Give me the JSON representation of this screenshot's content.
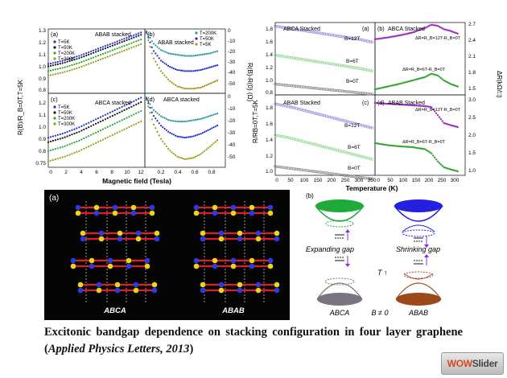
{
  "caption": {
    "text_before": "Excitonic bandgap dependence on stacking configuration in four layer graphene (",
    "journal": "Applied Physics Letters, 2013",
    "text_after": ")"
  },
  "watermark": {
    "part1": "WOW",
    "part2": "Slider"
  },
  "colors": {
    "blue": "#1f27d8",
    "black": "#111111",
    "green": "#2ea52e",
    "olive": "#9a9a12",
    "teal": "#2a9a9a",
    "purple": "#9a2ac4",
    "gray": "#888888",
    "lightblue": "#8f8fe0",
    "lightgreen": "#8fd88f"
  },
  "panel_mr": {
    "ylabel_left": "R(B)/R_B=0T,T=5K",
    "ylabel_right": "R(B)-R(0) (Ω)",
    "xlabel": "Magnetic field (Tesla)",
    "left_yticks": [
      "1.3",
      "1.2",
      "1.1",
      "1.0",
      "0.9",
      "0.8",
      "0.75",
      "0.8",
      "0.9",
      "1.0",
      "1.1",
      "1.2"
    ],
    "right_yticks": [
      "0",
      "-10",
      "-20",
      "-30",
      "-40",
      "-50",
      "0",
      "-10",
      "-20",
      "-30",
      "-40",
      "-50"
    ],
    "xticks_left": [
      "0",
      "2",
      "4",
      "6",
      "8",
      "10",
      "12"
    ],
    "xticks_right": [
      "0.2",
      "0.4",
      "0.6",
      "0.8"
    ],
    "sub": [
      {
        "letter": "(a)",
        "title": "ABAB stacked",
        "legend": [
          "T=5K",
          "T=50K",
          "T=200K",
          "T=300K"
        ]
      },
      {
        "letter": "(b)",
        "title": "ABAB stacked",
        "legend": [
          "T=200K",
          "T=50K",
          "T=5K"
        ]
      },
      {
        "letter": "(c)",
        "title": "",
        "legend": [
          "T=5K",
          "T=50K",
          "T=200K",
          "T=300K"
        ],
        "inline": "ABCA stacked"
      },
      {
        "letter": "(d)",
        "title": "ABCA stacked",
        "legend": []
      }
    ]
  },
  "chart_data": [
    {
      "type": "scatter",
      "title": "ABAB stacked",
      "xlabel": "Magnetic field (Tesla)",
      "ylabel": "R(B)/R_B=0T,T=5K",
      "xlim": [
        0,
        12.5
      ],
      "ylim": [
        0.75,
        1.3
      ],
      "series": [
        {
          "name": "T=5K",
          "x": [
            0,
            2,
            4,
            6,
            8,
            10,
            12
          ],
          "y": [
            1.0,
            1.03,
            1.07,
            1.12,
            1.17,
            1.22,
            1.27
          ]
        },
        {
          "name": "T=50K",
          "x": [
            0,
            2,
            4,
            6,
            8,
            10,
            12
          ],
          "y": [
            0.98,
            1.01,
            1.05,
            1.1,
            1.15,
            1.2,
            1.25
          ]
        },
        {
          "name": "T=200K",
          "x": [
            0,
            2,
            4,
            6,
            8,
            10,
            12
          ],
          "y": [
            0.94,
            0.97,
            1.01,
            1.06,
            1.11,
            1.16,
            1.21
          ]
        },
        {
          "name": "T=300K",
          "x": [
            0,
            2,
            4,
            6,
            8,
            10,
            12
          ],
          "y": [
            0.9,
            0.93,
            0.97,
            1.02,
            1.07,
            1.12,
            1.17
          ]
        }
      ]
    },
    {
      "type": "scatter",
      "title": "ABAB stacked",
      "ylabel": "R(B)-R(0) (Ω)",
      "xlim": [
        0,
        1.0
      ],
      "ylim": [
        -55,
        0
      ],
      "series": [
        {
          "name": "T=200K",
          "x": [
            0.02,
            0.1,
            0.2,
            0.3,
            0.4,
            0.5,
            0.6,
            0.7,
            0.8,
            0.9
          ],
          "y": [
            -2,
            -12,
            -18,
            -21,
            -22,
            -23,
            -23,
            -22,
            -21,
            -19
          ]
        },
        {
          "name": "T=50K",
          "x": [
            0.02,
            0.1,
            0.2,
            0.3,
            0.4,
            0.5,
            0.6,
            0.7,
            0.8,
            0.9
          ],
          "y": [
            -3,
            -18,
            -27,
            -32,
            -35,
            -36,
            -36,
            -35,
            -33,
            -31
          ]
        },
        {
          "name": "T=5K",
          "x": [
            0.02,
            0.1,
            0.2,
            0.3,
            0.4,
            0.5,
            0.6,
            0.7,
            0.8,
            0.9
          ],
          "y": [
            -4,
            -24,
            -36,
            -44,
            -49,
            -51,
            -51,
            -50,
            -47,
            -44
          ]
        }
      ]
    },
    {
      "type": "scatter",
      "title": "ABCA stacked",
      "xlabel": "Magnetic field (Tesla)",
      "ylabel": "R(B)/R_B=0T,T=5K",
      "xlim": [
        0,
        12.5
      ],
      "ylim": [
        0.75,
        1.25
      ],
      "series": [
        {
          "name": "T=5K",
          "x": [
            0,
            2,
            4,
            6,
            8,
            10,
            12
          ],
          "y": [
            0.95,
            0.98,
            1.02,
            1.07,
            1.12,
            1.17,
            1.22
          ]
        },
        {
          "name": "T=50K",
          "x": [
            0,
            2,
            4,
            6,
            8,
            10,
            12
          ],
          "y": [
            0.92,
            0.95,
            0.99,
            1.04,
            1.09,
            1.14,
            1.19
          ]
        },
        {
          "name": "T=200K",
          "x": [
            0,
            2,
            4,
            6,
            8,
            10,
            12
          ],
          "y": [
            0.86,
            0.89,
            0.93,
            0.98,
            1.03,
            1.08,
            1.13
          ]
        },
        {
          "name": "T=300K",
          "x": [
            0,
            2,
            4,
            6,
            8,
            10,
            12
          ],
          "y": [
            0.79,
            0.82,
            0.86,
            0.91,
            0.96,
            1.01,
            1.06
          ]
        }
      ]
    },
    {
      "type": "scatter",
      "title": "ABCA stacked",
      "xlabel": "Magnetic field (Tesla)",
      "ylabel": "R(B)-R(0) (Ω)",
      "xlim": [
        0,
        1.0
      ],
      "ylim": [
        -55,
        0
      ],
      "series": [
        {
          "x": [
            0.02,
            0.1,
            0.2,
            0.3,
            0.4,
            0.5,
            0.6,
            0.7,
            0.8,
            0.9
          ],
          "y": [
            -3,
            -12,
            -17,
            -20,
            -21,
            -21,
            -20,
            -19,
            -17,
            -15
          ]
        },
        {
          "x": [
            0.02,
            0.1,
            0.2,
            0.3,
            0.4,
            0.5,
            0.6,
            0.7,
            0.8,
            0.9
          ],
          "y": [
            -4,
            -16,
            -24,
            -29,
            -32,
            -33,
            -32,
            -30,
            -27,
            -24
          ]
        },
        {
          "x": [
            0.02,
            0.1,
            0.2,
            0.3,
            0.4,
            0.5,
            0.6,
            0.7,
            0.8,
            0.9
          ],
          "y": [
            -5,
            -22,
            -34,
            -42,
            -47,
            -49,
            -48,
            -45,
            -40,
            -35
          ]
        }
      ]
    },
    {
      "type": "scatter",
      "title": "ABCA Stacked",
      "xlabel": "Temperature (K)",
      "ylabel": "R/RB=0T,T=5K",
      "xlim": [
        0,
        360
      ],
      "ylim": [
        0.85,
        1.85
      ],
      "series": [
        {
          "name": "B=12T",
          "x": [
            0,
            50,
            100,
            150,
            200,
            250,
            300,
            350
          ],
          "y": [
            1.8,
            1.77,
            1.74,
            1.71,
            1.68,
            1.65,
            1.62,
            1.58
          ]
        },
        {
          "name": "B=6T",
          "x": [
            0,
            50,
            100,
            150,
            200,
            250,
            300,
            350
          ],
          "y": [
            1.4,
            1.37,
            1.34,
            1.31,
            1.28,
            1.25,
            1.22,
            1.18
          ]
        },
        {
          "name": "B=0T",
          "x": [
            0,
            50,
            100,
            150,
            200,
            250,
            300,
            350
          ],
          "y": [
            1.0,
            0.98,
            0.96,
            0.94,
            0.92,
            0.9,
            0.88,
            0.86
          ]
        }
      ]
    },
    {
      "type": "scatter",
      "title": "ABAB Stacked",
      "xlabel": "Temperature (K)",
      "ylabel": "R/RB=0T,T=5K",
      "xlim": [
        0,
        360
      ],
      "ylim": [
        0.9,
        1.8
      ],
      "series": [
        {
          "name": "B=12T",
          "x": [
            0,
            50,
            100,
            150,
            200,
            250,
            300,
            350
          ],
          "y": [
            1.7,
            1.67,
            1.63,
            1.59,
            1.55,
            1.51,
            1.47,
            1.43
          ]
        },
        {
          "name": "B=6T",
          "x": [
            0,
            50,
            100,
            150,
            200,
            250,
            300,
            350
          ],
          "y": [
            1.35,
            1.32,
            1.28,
            1.24,
            1.2,
            1.16,
            1.12,
            1.08
          ]
        },
        {
          "name": "B=0T",
          "x": [
            0,
            50,
            100,
            150,
            200,
            250,
            300,
            350
          ],
          "y": [
            1.0,
            0.98,
            0.96,
            0.94,
            0.92,
            0.9,
            0.88,
            0.86
          ]
        }
      ]
    },
    {
      "type": "scatter",
      "title": "ABCA Stacked",
      "xlabel": "Temperature (K)",
      "ylabel": "ΔR(kΩ/□)",
      "xlim": [
        0,
        360
      ],
      "ylim": [
        1.4,
        2.7
      ],
      "series": [
        {
          "name": "ΔR=R_B=12T-R_B=0T",
          "x": [
            0,
            50,
            100,
            150,
            200,
            225,
            250,
            275,
            300,
            330
          ],
          "y": [
            2.4,
            2.43,
            2.47,
            2.52,
            2.6,
            2.66,
            2.64,
            2.58,
            2.55,
            2.5
          ]
        },
        {
          "name": "ΔR=R_B=6T-R_B=0T",
          "x": [
            0,
            50,
            100,
            150,
            200,
            225,
            250,
            275,
            300,
            330
          ],
          "y": [
            1.5,
            1.55,
            1.6,
            1.66,
            1.72,
            1.78,
            1.75,
            1.66,
            1.6,
            1.55
          ]
        }
      ]
    },
    {
      "type": "scatter",
      "title": "ABAB Stacked",
      "xlabel": "Temperature (K)",
      "ylabel": "ΔR(kΩ/□)",
      "xlim": [
        0,
        360
      ],
      "ylim": [
        1.0,
        3.0
      ],
      "series": [
        {
          "name": "ΔR=R_B=12T-R_B=0T",
          "x": [
            0,
            50,
            100,
            150,
            200,
            225,
            250,
            275,
            300,
            330
          ],
          "y": [
            2.8,
            2.78,
            2.76,
            2.74,
            2.72,
            2.7,
            2.5,
            2.3,
            2.25,
            2.2
          ]
        },
        {
          "name": "ΔR=R_B=6T-R_B=0T",
          "x": [
            0,
            50,
            100,
            150,
            200,
            225,
            250,
            275,
            300,
            330
          ],
          "y": [
            1.8,
            1.75,
            1.72,
            1.7,
            1.65,
            1.55,
            1.35,
            1.2,
            1.15,
            1.1
          ]
        }
      ]
    }
  ],
  "panel_temp": {
    "ylabel": "R/RB=0T,T=5K",
    "ylabel_right": "ΔR(kΩ/□)",
    "xlabel": "Temperature (K)",
    "xticks": [
      "0",
      "50",
      "100",
      "150",
      "200",
      "250",
      "300",
      "350"
    ],
    "xticks_right": [
      "0",
      "50",
      "100",
      "150",
      "200",
      "250",
      "300"
    ],
    "yticks_top": [
      "1.8",
      "1.6",
      "1.4",
      "1.2",
      "1.0",
      "0.8"
    ],
    "yticks_bottom": [
      "1.8",
      "1.6",
      "1.4",
      "1.2",
      "1.0"
    ],
    "yticks_right_top": [
      "2.7",
      "2.4",
      "2.1",
      "1.8",
      "1.5"
    ],
    "yticks_right_bottom": [
      "3.0",
      "2.5",
      "2.0",
      "1.5",
      "1.0"
    ],
    "sub": [
      {
        "letter": "(a)",
        "title": "ABCA Stacked",
        "curves": [
          "B=12T",
          "B=6T",
          "B=0T"
        ]
      },
      {
        "letter": "(b)",
        "title": "ABCA Stacked",
        "formulas": [
          "ΔR=R_B=12T-R_B=0T",
          "ΔR=R_B=6T-R_B=0T"
        ]
      },
      {
        "letter": "(c)",
        "title": "ABAB Stacked",
        "curves": [
          "B=12T",
          "B=6T",
          "B=0T"
        ]
      },
      {
        "letter": "(d)",
        "title": "ABAB Stacked",
        "formulas": [
          "ΔR=R_B=12T-R_B=0T",
          "ΔR=R_B=6T-R_B=0T"
        ]
      }
    ]
  },
  "panel_struct": {
    "letter": "(a)",
    "left": "ABCA",
    "right": "ABAB"
  },
  "panel_band": {
    "letter": "(b)",
    "expanding": "Expanding gap",
    "shrinking": "Shrinking gap",
    "t_label": "T ↑",
    "abca": "ABCA",
    "abab": "ABAB",
    "b_label": "B ≠ 0"
  }
}
